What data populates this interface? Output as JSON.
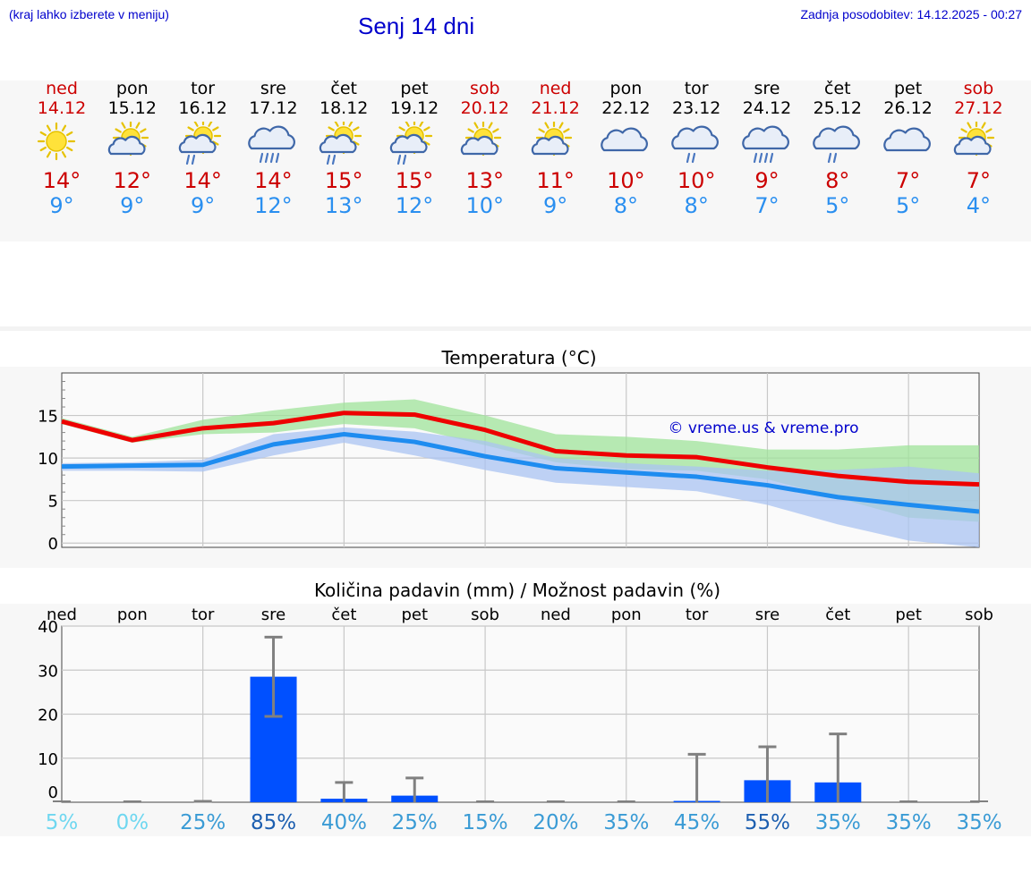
{
  "header": {
    "left_note": "(kraj lahko izberete v meniju)",
    "title": "Senj 14 dni",
    "updated": "Zadnja posodobitev: 14.12.2025 - 00:27"
  },
  "colors": {
    "max_temp": "#cc0000",
    "min_temp": "#2a8ff0",
    "precip_bar": "#0050ff",
    "band_red": "#9fe39a",
    "band_blue": "#a9c3f2"
  },
  "days": [
    {
      "name": "ned",
      "date": "14.12",
      "weekend": true,
      "icon": "sun",
      "max": "14°",
      "min": "9°"
    },
    {
      "name": "pon",
      "date": "15.12",
      "weekend": false,
      "icon": "sun-cloud",
      "max": "12°",
      "min": "9°"
    },
    {
      "name": "tor",
      "date": "16.12",
      "weekend": false,
      "icon": "sun-cloud-rain",
      "max": "14°",
      "min": "9°"
    },
    {
      "name": "sre",
      "date": "17.12",
      "weekend": false,
      "icon": "cloud-rain-heavy",
      "max": "14°",
      "min": "12°"
    },
    {
      "name": "čet",
      "date": "18.12",
      "weekend": false,
      "icon": "sun-cloud-rain",
      "max": "15°",
      "min": "13°"
    },
    {
      "name": "pet",
      "date": "19.12",
      "weekend": false,
      "icon": "sun-cloud-rain",
      "max": "15°",
      "min": "12°"
    },
    {
      "name": "sob",
      "date": "20.12",
      "weekend": true,
      "icon": "sun-cloud",
      "max": "13°",
      "min": "10°"
    },
    {
      "name": "ned",
      "date": "21.12",
      "weekend": true,
      "icon": "sun-cloud",
      "max": "11°",
      "min": "9°"
    },
    {
      "name": "pon",
      "date": "22.12",
      "weekend": false,
      "icon": "cloud",
      "max": "10°",
      "min": "8°"
    },
    {
      "name": "tor",
      "date": "23.12",
      "weekend": false,
      "icon": "cloud-rain",
      "max": "10°",
      "min": "8°"
    },
    {
      "name": "sre",
      "date": "24.12",
      "weekend": false,
      "icon": "cloud-rain-heavy",
      "max": "9°",
      "min": "7°"
    },
    {
      "name": "čet",
      "date": "25.12",
      "weekend": false,
      "icon": "cloud-rain",
      "max": "8°",
      "min": "5°"
    },
    {
      "name": "pet",
      "date": "26.12",
      "weekend": false,
      "icon": "cloud",
      "max": "7°",
      "min": "5°"
    },
    {
      "name": "sob",
      "date": "27.12",
      "weekend": true,
      "icon": "sun-cloud",
      "max": "7°",
      "min": "4°"
    }
  ],
  "chart_data": [
    {
      "type": "line",
      "title": "Temperatura (°C)",
      "watermark": "© vreme.us & vreme.pro",
      "ylim": [
        -0.5,
        20
      ],
      "yticks": [
        0,
        5,
        10,
        15
      ],
      "x": [
        0,
        1,
        2,
        3,
        4,
        5,
        6,
        7,
        8,
        9,
        10,
        11,
        12,
        13
      ],
      "series": [
        {
          "name": "max",
          "color": "#ee0000",
          "values": [
            14.3,
            12.1,
            13.5,
            14.1,
            15.3,
            15.1,
            13.3,
            10.8,
            10.3,
            10.1,
            8.9,
            7.9,
            7.2,
            6.9
          ]
        },
        {
          "name": "min",
          "color": "#1e8cf0",
          "values": [
            9.0,
            9.1,
            9.2,
            11.6,
            12.8,
            11.9,
            10.2,
            8.8,
            8.3,
            7.8,
            6.8,
            5.4,
            4.5,
            3.7
          ]
        }
      ],
      "bands": [
        {
          "name": "max_range",
          "color": "#9fe39a",
          "upper": [
            14.7,
            12.5,
            14.5,
            15.6,
            16.5,
            16.9,
            15.0,
            12.8,
            12.5,
            12.0,
            11.0,
            11.0,
            11.5,
            11.5
          ],
          "lower": [
            14.0,
            11.8,
            12.8,
            13.0,
            14.0,
            13.5,
            11.5,
            9.5,
            8.7,
            8.5,
            7.5,
            5.3,
            3.0,
            2.5
          ]
        },
        {
          "name": "min_range",
          "color": "#a9c3f2",
          "upper": [
            9.4,
            9.5,
            9.8,
            12.8,
            13.6,
            13.1,
            12.0,
            10.0,
            9.4,
            9.0,
            8.5,
            8.6,
            9.0,
            8.2
          ],
          "lower": [
            8.5,
            8.5,
            8.4,
            10.3,
            11.8,
            10.3,
            8.6,
            7.1,
            6.6,
            6.1,
            4.5,
            2.2,
            0.3,
            -0.5
          ]
        }
      ]
    },
    {
      "type": "bar",
      "title": "Količina padavin (mm) / Možnost padavin (%)",
      "ylim": [
        0,
        40
      ],
      "yticks": [
        0,
        10,
        20,
        30,
        40
      ],
      "categories": [
        "ned",
        "pon",
        "tor",
        "sre",
        "čet",
        "pet",
        "sob",
        "ned",
        "pon",
        "tor",
        "sre",
        "čet",
        "pet",
        "sob"
      ],
      "values": [
        0,
        0,
        0,
        28.5,
        0.8,
        1.5,
        0,
        0,
        0,
        0.3,
        5.0,
        4.5,
        0,
        0
      ],
      "error_high": [
        0,
        0,
        0.2,
        37.5,
        4.5,
        5.5,
        0,
        0,
        0,
        10.9,
        12.6,
        15.5,
        0,
        0
      ],
      "error_low": [
        0,
        0,
        0,
        19.5,
        0,
        0,
        0,
        0,
        0,
        0,
        0,
        0,
        0,
        0
      ],
      "probability": [
        "5%",
        "0%",
        "25%",
        "85%",
        "40%",
        "25%",
        "15%",
        "20%",
        "35%",
        "45%",
        "55%",
        "35%",
        "35%",
        "35%"
      ],
      "probability_colors": [
        "#6fd7f0",
        "#6fd7f0",
        "#3a9bd5",
        "#1d5fb0",
        "#3a9bd5",
        "#3a9bd5",
        "#3a9bd5",
        "#3a9bd5",
        "#3a9bd5",
        "#3a9bd5",
        "#1d5fb0",
        "#3a9bd5",
        "#3a9bd5",
        "#3a9bd5"
      ]
    }
  ]
}
